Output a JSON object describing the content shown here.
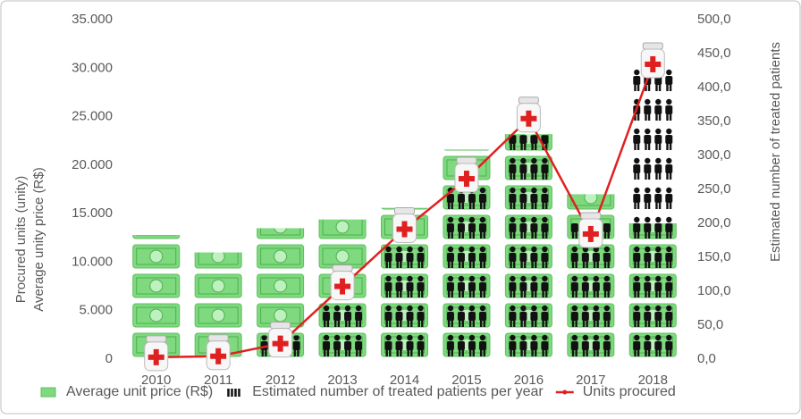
{
  "chart_data": {
    "type": "pictograph",
    "categories": [
      "2010",
      "2011",
      "2012",
      "2013",
      "2014",
      "2015",
      "2016",
      "2017",
      "2018"
    ],
    "ylabel": "Procured units (unity)",
    "ylabel2": "Average unity price (R$)",
    "y2label": "Estimated number of treated patients",
    "ylim": [
      0,
      35000
    ],
    "yticks": [
      0,
      {
        "value": 5000,
        "label": "5.000"
      },
      {
        "value": 10000,
        "label": "10.000"
      },
      {
        "value": 15000,
        "label": "15.000"
      },
      {
        "value": 20000,
        "label": "20.000"
      },
      {
        "value": 25000,
        "label": "25.000"
      },
      {
        "value": 30000,
        "label": "30.000"
      },
      {
        "value": 35000,
        "label": "35.000"
      }
    ],
    "y2lim": [
      0,
      500
    ],
    "y2ticks": [
      {
        "value": 0,
        "label": "0,0"
      },
      {
        "value": 50,
        "label": "50,0"
      },
      {
        "value": 100,
        "label": "100,0"
      },
      {
        "value": 150,
        "label": "150,0"
      },
      {
        "value": 200,
        "label": "200,0"
      },
      {
        "value": 250,
        "label": "250,0"
      },
      {
        "value": 300,
        "label": "300,0"
      },
      {
        "value": 350,
        "label": "350,0"
      },
      {
        "value": 400,
        "label": "400,0"
      },
      {
        "value": 450,
        "label": "450,0"
      },
      {
        "value": 500,
        "label": "500,0"
      }
    ],
    "series": [
      {
        "name": "Average unit price (R$)",
        "kind": "money",
        "color": "#7fd97f",
        "axis": "y",
        "values": [
          12800,
          11000,
          13500,
          14400,
          15600,
          21600,
          23200,
          17000,
          14000
        ]
      },
      {
        "name": "Estimated number of treated patients per year",
        "kind": "people",
        "color": "#111111",
        "axis": "y2",
        "values": [
          0,
          0,
          35,
          82,
          170,
          260,
          330,
          200,
          435
        ]
      },
      {
        "name": "Units procured",
        "kind": "line",
        "color": "#e02020",
        "axis": "y",
        "values": [
          200,
          300,
          1600,
          7500,
          13400,
          18600,
          24800,
          12900,
          30400
        ]
      }
    ]
  }
}
